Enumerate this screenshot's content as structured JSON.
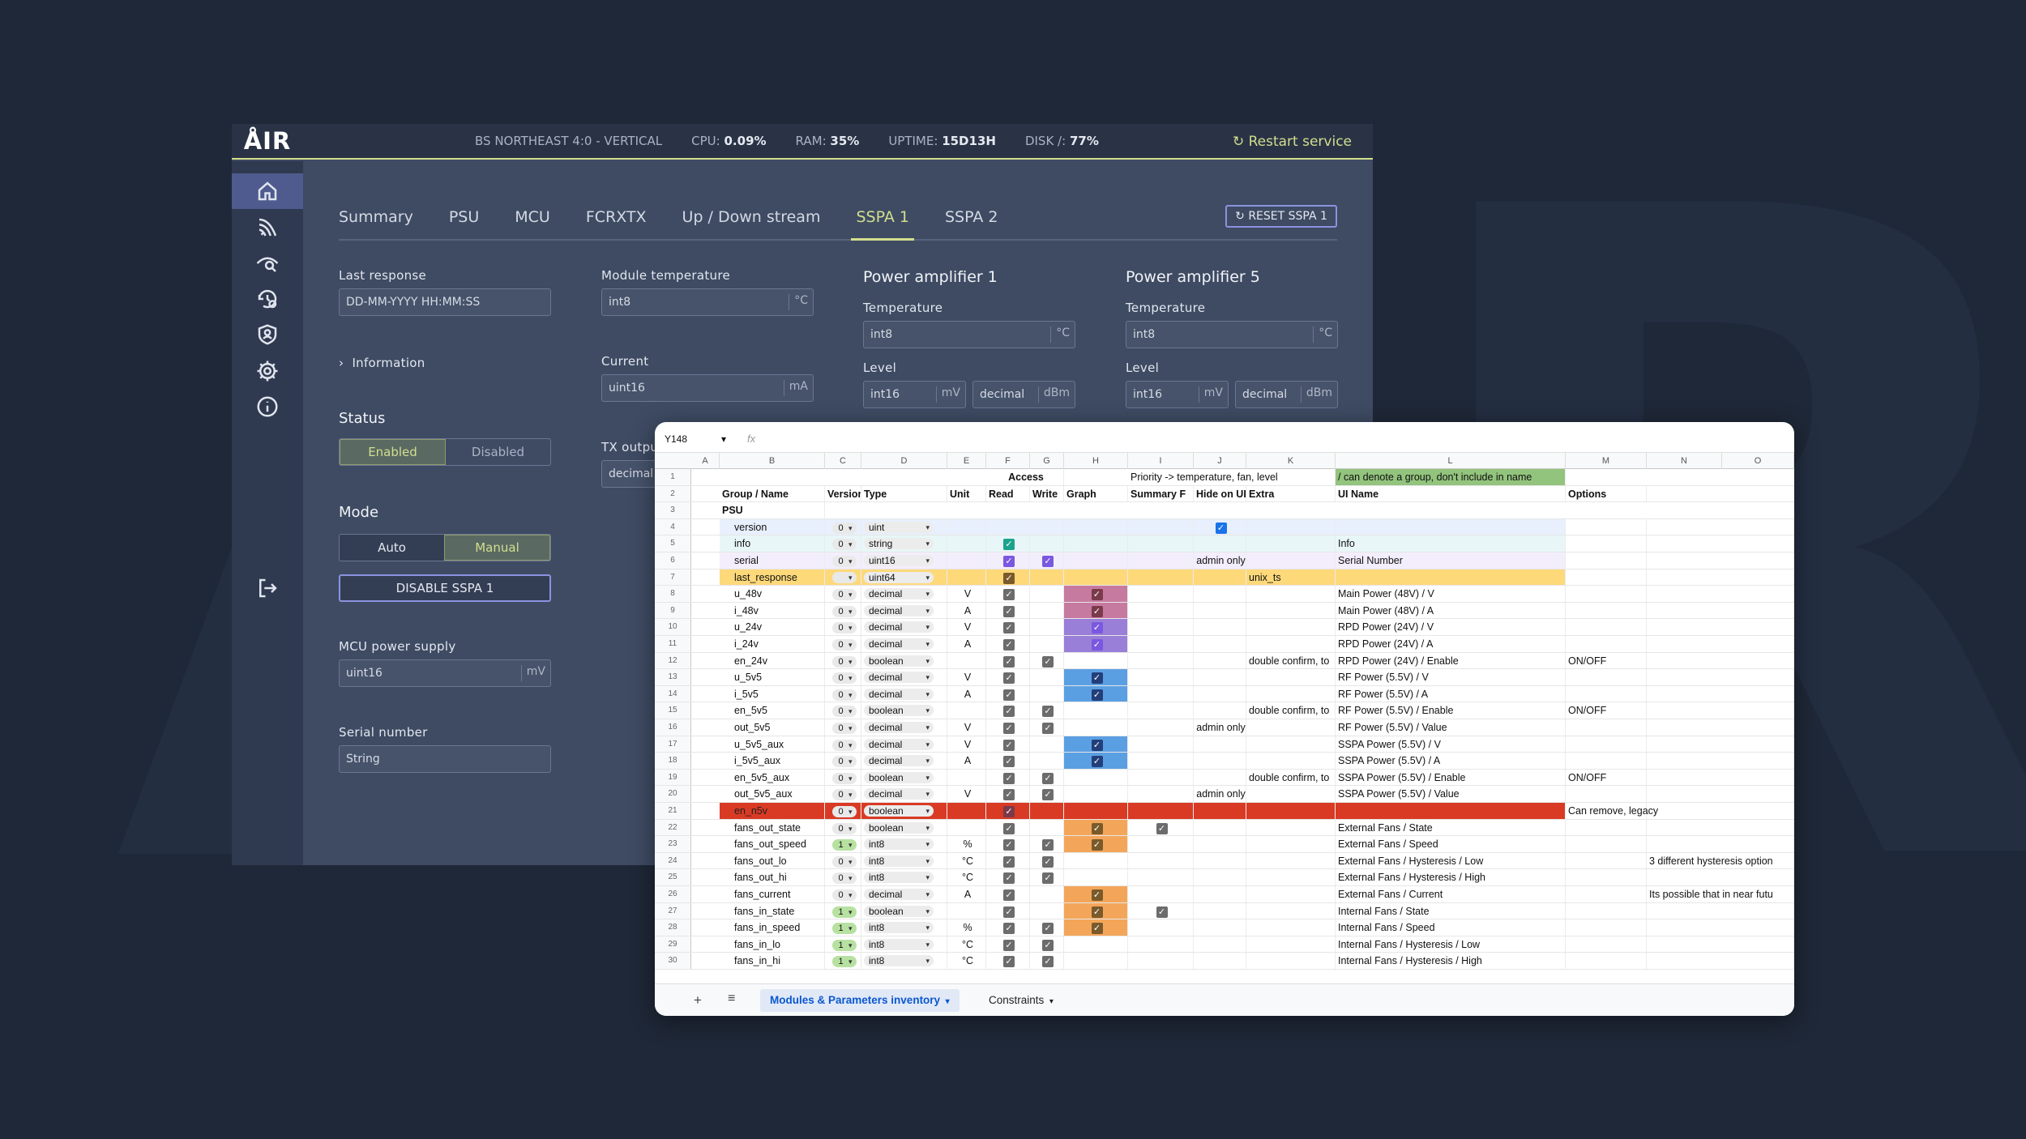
{
  "app": {
    "logo": "ÅIR",
    "site": "BS NORTHEAST 4:0 - VERTICAL",
    "cpu_label": "CPU:",
    "cpu": "0.09%",
    "ram_label": "RAM:",
    "ram": "35%",
    "uptime_label": "UPTIME:",
    "uptime": "15D13H",
    "disk_label": "DISK /:",
    "disk": "77%",
    "restart": "Restart service",
    "nav_icons": [
      "home-icon",
      "signal-icon",
      "eye-search-icon",
      "history-settings-icon",
      "shield-user-icon",
      "gear-icon",
      "info-icon",
      "logout-icon"
    ]
  },
  "tabs": [
    "Summary",
    "PSU",
    "MCU",
    "FCRXTX",
    "Up / Down stream",
    "SSPA 1",
    "SSPA 2"
  ],
  "reset_label": "RESET SSPA 1",
  "form": {
    "last_response_label": "Last response",
    "last_response_value": "DD-MM-YYYY HH:MM:SS",
    "information": "Information",
    "status_label": "Status",
    "status_enabled": "Enabled",
    "status_disabled": "Disabled",
    "mode_label": "Mode",
    "mode_auto": "Auto",
    "mode_manual": "Manual",
    "disable_button": "DISABLE SSPA 1",
    "mcu_label": "MCU power supply",
    "mcu_value": "uint16",
    "mcu_unit": "mV",
    "serial_label": "Serial number",
    "serial_value": "String",
    "module_temp_label": "Module temperature",
    "module_temp_value": "int8",
    "module_temp_unit": "°C",
    "current_label": "Current",
    "current_value": "uint16",
    "current_unit": "mA",
    "tx_label": "TX outpu",
    "tx_value": "decimal",
    "pa1_title": "Power amplifier 1",
    "pa5_title": "Power amplifier 5",
    "temperature_label": "Temperature",
    "temp_value": "int8",
    "temp_unit": "°C",
    "level_label": "Level",
    "level_value1": "int16",
    "level_unit1": "mV",
    "level_value2": "decimal",
    "level_unit2": "dBm"
  },
  "sheet": {
    "name_box": "Y148",
    "fx": "fx",
    "columns": [
      "A",
      "B",
      "C",
      "D",
      "E",
      "F",
      "G",
      "H",
      "I",
      "J",
      "K",
      "L",
      "M",
      "N",
      "O"
    ],
    "row1": {
      "access": "Access",
      "priority": "Priority -> temperature, fan, level",
      "note": "/ can denote a group, don't include in name"
    },
    "headers": [
      "Group / Name",
      "Version",
      "Type",
      "Unit",
      "Read",
      "Write",
      "Graph",
      "Summary F",
      "Hide on UI",
      "Extra",
      "UI Name",
      "Options"
    ],
    "group": "PSU",
    "rows": [
      {
        "n": "4",
        "name": "version",
        "ver": "0",
        "type": "uint",
        "unit": "",
        "read": "",
        "write": "",
        "graph": "",
        "summary": "",
        "hide": "blue",
        "extra": "",
        "ui": "",
        "opt": "",
        "note": "",
        "bg": "#e8f0fe"
      },
      {
        "n": "5",
        "name": "info",
        "ver": "0",
        "type": "string",
        "unit": "",
        "read": "teal",
        "write": "",
        "graph": "",
        "summary": "",
        "hide": "",
        "extra": "",
        "ui": "Info",
        "opt": "",
        "note": "",
        "bg": "#e8f6f8"
      },
      {
        "n": "6",
        "name": "serial",
        "ver": "0",
        "type": "uint16",
        "unit": "",
        "read": "purple",
        "write": "purple",
        "graph": "",
        "summary": "",
        "hide": "admin only",
        "extra": "",
        "ui": "Serial Number",
        "opt": "",
        "note": "",
        "bg": "#f3eefc"
      },
      {
        "n": "7",
        "name": "last_response",
        "ver": "",
        "type": "uint64",
        "unit": "",
        "read": "orange",
        "write": "",
        "graph": "",
        "summary": "",
        "hide": "",
        "extra": "unix_ts",
        "ui": "",
        "opt": "",
        "note": "",
        "bg": "#fdd97a"
      },
      {
        "n": "8",
        "name": "u_48v",
        "ver": "0",
        "type": "decimal",
        "unit": "V",
        "read": "gray",
        "write": "",
        "graph": "red",
        "summary": "",
        "hide": "",
        "extra": "",
        "ui": "Main Power (48V) / V",
        "opt": "",
        "note": "",
        "bg": ""
      },
      {
        "n": "9",
        "name": "i_48v",
        "ver": "0",
        "type": "decimal",
        "unit": "A",
        "read": "gray",
        "write": "",
        "graph": "red",
        "summary": "",
        "hide": "",
        "extra": "",
        "ui": "Main Power (48V) / A",
        "opt": "",
        "note": "",
        "bg": ""
      },
      {
        "n": "10",
        "name": "u_24v",
        "ver": "0",
        "type": "decimal",
        "unit": "V",
        "read": "gray",
        "write": "",
        "graph": "violet",
        "summary": "",
        "hide": "",
        "extra": "",
        "ui": "RPD Power (24V) / V",
        "opt": "",
        "note": "",
        "bg": ""
      },
      {
        "n": "11",
        "name": "i_24v",
        "ver": "0",
        "type": "decimal",
        "unit": "A",
        "read": "gray",
        "write": "",
        "graph": "violet",
        "summary": "",
        "hide": "",
        "extra": "",
        "ui": "RPD Power (24V) / A",
        "opt": "",
        "note": "",
        "bg": ""
      },
      {
        "n": "12",
        "name": "en_24v",
        "ver": "0",
        "type": "boolean",
        "unit": "",
        "read": "gray",
        "write": "gray",
        "graph": "",
        "summary": "",
        "hide": "",
        "extra": "double confirm, to",
        "ui": "RPD Power (24V) / Enable",
        "opt": "ON/OFF",
        "note": "",
        "bg": ""
      },
      {
        "n": "13",
        "name": "u_5v5",
        "ver": "0",
        "type": "decimal",
        "unit": "V",
        "read": "gray",
        "write": "",
        "graph": "blue",
        "summary": "",
        "hide": "",
        "extra": "",
        "ui": "RF Power (5.5V) / V",
        "opt": "",
        "note": "",
        "bg": ""
      },
      {
        "n": "14",
        "name": "i_5v5",
        "ver": "0",
        "type": "decimal",
        "unit": "A",
        "read": "gray",
        "write": "",
        "graph": "blue",
        "summary": "",
        "hide": "",
        "extra": "",
        "ui": "RF Power (5.5V) / A",
        "opt": "",
        "note": "",
        "bg": ""
      },
      {
        "n": "15",
        "name": "en_5v5",
        "ver": "0",
        "type": "boolean",
        "unit": "",
        "read": "gray",
        "write": "gray",
        "graph": "",
        "summary": "",
        "hide": "",
        "extra": "double confirm, to",
        "ui": "RF Power (5.5V) / Enable",
        "opt": "ON/OFF",
        "note": "",
        "bg": ""
      },
      {
        "n": "16",
        "name": "out_5v5",
        "ver": "0",
        "type": "decimal",
        "unit": "V",
        "read": "gray",
        "write": "gray",
        "graph": "",
        "summary": "",
        "hide": "admin only",
        "extra": "",
        "ui": "RF Power (5.5V) / Value",
        "opt": "",
        "note": "",
        "bg": ""
      },
      {
        "n": "17",
        "name": "u_5v5_aux",
        "ver": "0",
        "type": "decimal",
        "unit": "V",
        "read": "gray",
        "write": "",
        "graph": "blue",
        "summary": "",
        "hide": "",
        "extra": "",
        "ui": "SSPA Power (5.5V) / V",
        "opt": "",
        "note": "",
        "bg": ""
      },
      {
        "n": "18",
        "name": "i_5v5_aux",
        "ver": "0",
        "type": "decimal",
        "unit": "A",
        "read": "gray",
        "write": "",
        "graph": "blue",
        "summary": "",
        "hide": "",
        "extra": "",
        "ui": "SSPA Power (5.5V) / A",
        "opt": "",
        "note": "",
        "bg": ""
      },
      {
        "n": "19",
        "name": "en_5v5_aux",
        "ver": "0",
        "type": "boolean",
        "unit": "",
        "read": "gray",
        "write": "gray",
        "graph": "",
        "summary": "",
        "hide": "",
        "extra": "double confirm, to",
        "ui": "SSPA Power (5.5V) / Enable",
        "opt": "ON/OFF",
        "note": "",
        "bg": ""
      },
      {
        "n": "20",
        "name": "out_5v5_aux",
        "ver": "0",
        "type": "decimal",
        "unit": "V",
        "read": "gray",
        "write": "gray",
        "graph": "",
        "summary": "",
        "hide": "admin only",
        "extra": "",
        "ui": "SSPA Power (5.5V) / Value",
        "opt": "",
        "note": "",
        "bg": ""
      },
      {
        "n": "21",
        "name": "en_n5v",
        "ver": "0",
        "type": "boolean",
        "unit": "",
        "read": "red",
        "write": "",
        "graph": "",
        "summary": "",
        "hide": "",
        "extra": "",
        "ui": "",
        "opt": "Can remove, legacy",
        "note": "",
        "bg": "#d93a24"
      },
      {
        "n": "22",
        "name": "fans_out_state",
        "ver": "0",
        "type": "boolean",
        "unit": "",
        "read": "gray",
        "write": "",
        "graph": "orange",
        "summary": "gray",
        "hide": "",
        "extra": "",
        "ui": "External Fans / State",
        "opt": "",
        "note": "",
        "bg": ""
      },
      {
        "n": "23",
        "name": "fans_out_speed",
        "ver": "1",
        "type": "int8",
        "unit": "%",
        "read": "gray",
        "write": "gray",
        "graph": "orange",
        "summary": "",
        "hide": "",
        "extra": "",
        "ui": "External Fans / Speed",
        "opt": "",
        "note": "",
        "bg": ""
      },
      {
        "n": "24",
        "name": "fans_out_lo",
        "ver": "0",
        "type": "int8",
        "unit": "°C",
        "read": "gray",
        "write": "gray",
        "graph": "",
        "summary": "",
        "hide": "",
        "extra": "",
        "ui": "External Fans / Hysteresis / Low",
        "opt": "",
        "note": "3 different hysteresis option",
        "bg": ""
      },
      {
        "n": "25",
        "name": "fans_out_hi",
        "ver": "0",
        "type": "int8",
        "unit": "°C",
        "read": "gray",
        "write": "gray",
        "graph": "",
        "summary": "",
        "hide": "",
        "extra": "",
        "ui": "External Fans / Hysteresis / High",
        "opt": "",
        "note": "",
        "bg": ""
      },
      {
        "n": "26",
        "name": "fans_current",
        "ver": "0",
        "type": "decimal",
        "unit": "A",
        "read": "gray",
        "write": "",
        "graph": "orange",
        "summary": "",
        "hide": "",
        "extra": "",
        "ui": "External Fans / Current",
        "opt": "",
        "note": "Its possible that in near futu",
        "bg": ""
      },
      {
        "n": "27",
        "name": "fans_in_state",
        "ver": "1",
        "type": "boolean",
        "unit": "",
        "read": "gray",
        "write": "",
        "graph": "orange",
        "summary": "gray",
        "hide": "",
        "extra": "",
        "ui": "Internal Fans / State",
        "opt": "",
        "note": "",
        "bg": ""
      },
      {
        "n": "28",
        "name": "fans_in_speed",
        "ver": "1",
        "type": "int8",
        "unit": "%",
        "read": "gray",
        "write": "gray",
        "graph": "orange",
        "summary": "",
        "hide": "",
        "extra": "",
        "ui": "Internal Fans / Speed",
        "opt": "",
        "note": "",
        "bg": ""
      },
      {
        "n": "29",
        "name": "fans_in_lo",
        "ver": "1",
        "type": "int8",
        "unit": "°C",
        "read": "gray",
        "write": "gray",
        "graph": "",
        "summary": "",
        "hide": "",
        "extra": "",
        "ui": "Internal Fans / Hysteresis / Low",
        "opt": "",
        "note": "",
        "bg": ""
      },
      {
        "n": "30",
        "name": "fans_in_hi",
        "ver": "1",
        "type": "int8",
        "unit": "°C",
        "read": "gray",
        "write": "gray",
        "graph": "",
        "summary": "",
        "hide": "",
        "extra": "",
        "ui": "Internal Fans / Hysteresis / High",
        "opt": "",
        "note": "",
        "bg": ""
      }
    ],
    "tabs": [
      "Modules & Parameters inventory",
      "Constraints"
    ]
  },
  "colors": {
    "accent": "#d3de8d",
    "bg": "#1f2838",
    "panel": "#3e4b63",
    "sidebar": "#2f394f",
    "active_nav": "#4f5b8e",
    "button_border": "#8b93e0",
    "graph_red": "#c77aa0",
    "graph_violet": "#9a7fd8",
    "graph_blue": "#5b9fe3",
    "graph_orange": "#f3a65a"
  }
}
